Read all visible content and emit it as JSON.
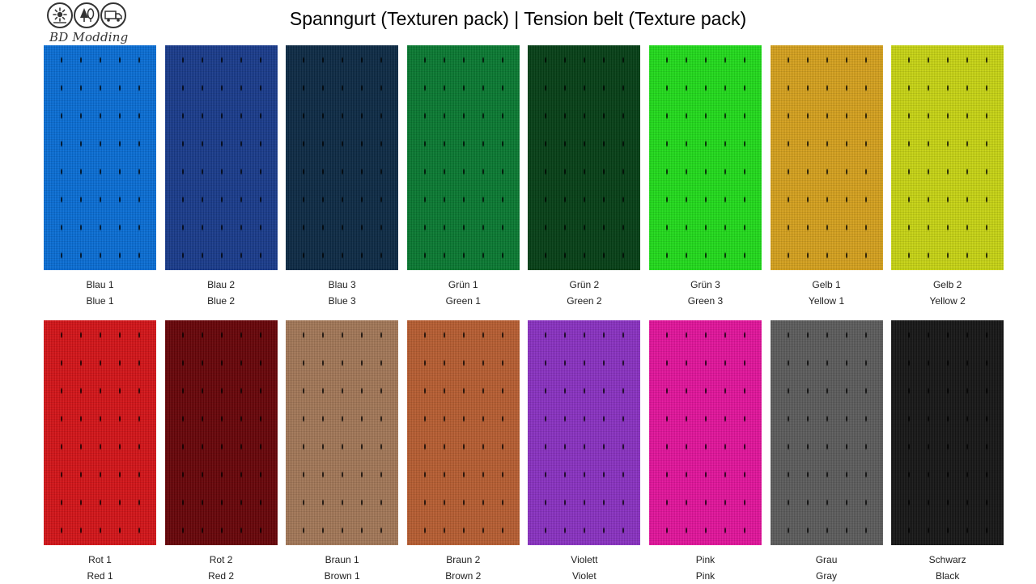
{
  "logo": {
    "text": "BD Modding",
    "icons": [
      "sunflower-icon",
      "tree-icon",
      "truck-icon"
    ]
  },
  "title": "Spanngurt (Texturen pack) | Tension belt (Texture pack)",
  "rows": [
    [
      {
        "de": "Blau 1",
        "en": "Blue 1",
        "color": "#0a6ed6"
      },
      {
        "de": "Blau 2",
        "en": "Blue 2",
        "color": "#193c8c"
      },
      {
        "de": "Blau 3",
        "en": "Blue 3",
        "color": "#0d2a45"
      },
      {
        "de": "Grün 1",
        "en": "Green 1",
        "color": "#0a7a32"
      },
      {
        "de": "Grün 2",
        "en": "Green 2",
        "color": "#054016"
      },
      {
        "de": "Grün 3",
        "en": "Green 3",
        "color": "#22dc1c"
      },
      {
        "de": "Gelb 1",
        "en": "Yellow 1",
        "color": "#d6a21e"
      },
      {
        "de": "Gelb 2",
        "en": "Yellow 2",
        "color": "#c8d414"
      }
    ],
    [
      {
        "de": "Rot 1",
        "en": "Red 1",
        "color": "#d41418"
      },
      {
        "de": "Rot 2",
        "en": "Red 2",
        "color": "#680408"
      },
      {
        "de": "Braun 1",
        "en": "Brown 1",
        "color": "#a47858"
      },
      {
        "de": "Braun 2",
        "en": "Brown 2",
        "color": "#b85e32"
      },
      {
        "de": "Violett",
        "en": "Violet",
        "color": "#8a32c2"
      },
      {
        "de": "Pink",
        "en": "Pink",
        "color": "#e3149c"
      },
      {
        "de": "Grau",
        "en": "Gray",
        "color": "#5c5c5c"
      },
      {
        "de": "Schwarz",
        "en": "Black",
        "color": "#161616"
      }
    ]
  ]
}
